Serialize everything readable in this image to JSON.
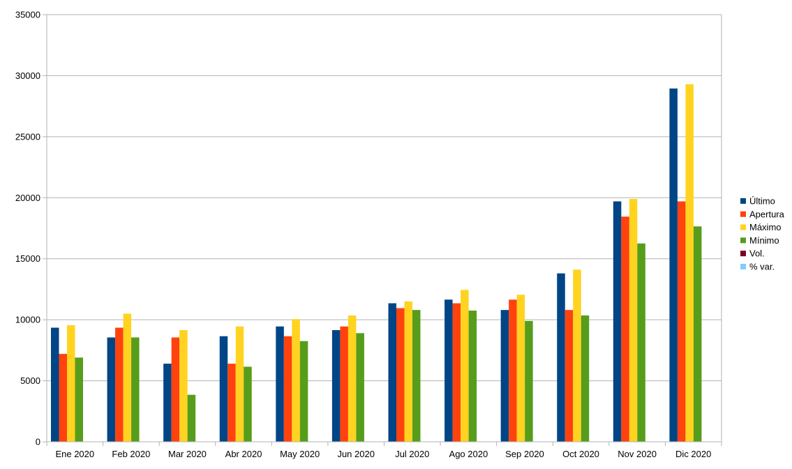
{
  "chart_data": {
    "type": "bar",
    "title": "",
    "xlabel": "",
    "ylabel": "",
    "ylim": [
      0,
      35000
    ],
    "y_ticks": [
      0,
      5000,
      10000,
      15000,
      20000,
      25000,
      30000,
      35000
    ],
    "y_tick_labels": [
      "0",
      "5000",
      "10000",
      "15000",
      "20000",
      "25000",
      "30000",
      "35000"
    ],
    "grid": "horizontal",
    "legend_position": "right",
    "categories": [
      "Ene 2020",
      "Feb 2020",
      "Mar 2020",
      "Abr 2020",
      "May 2020",
      "Jun 2020",
      "Jul 2020",
      "Ago 2020",
      "Sep 2020",
      "Oct 2020",
      "Nov 2020",
      "Dic 2020"
    ],
    "series": [
      {
        "name": "Último",
        "color": "#004586",
        "values": [
          9350,
          8550,
          6400,
          8650,
          9450,
          9150,
          11350,
          11650,
          10800,
          13800,
          19700,
          28950
        ]
      },
      {
        "name": "Apertura",
        "color": "#ff420e",
        "values": [
          7200,
          9350,
          8550,
          6400,
          8650,
          9450,
          10950,
          11350,
          11650,
          10800,
          18450,
          19700
        ]
      },
      {
        "name": "Máximo",
        "color": "#ffd320",
        "values": [
          9550,
          10500,
          9150,
          9450,
          10050,
          10350,
          11500,
          12450,
          12050,
          14100,
          19900,
          29300
        ]
      },
      {
        "name": "Mínimo",
        "color": "#579d1c",
        "values": [
          6900,
          8550,
          3850,
          6150,
          8250,
          8900,
          10800,
          10750,
          9900,
          10350,
          16250,
          17650
        ]
      },
      {
        "name": "Vol.",
        "color": "#7e0021",
        "values": [
          0,
          0,
          0,
          0,
          0,
          0,
          0,
          0,
          0,
          0,
          0,
          0
        ]
      },
      {
        "name": "% var.",
        "color": "#83caff",
        "values": [
          0,
          0,
          0,
          0,
          0,
          0,
          0,
          0,
          0,
          0,
          0,
          0
        ]
      }
    ]
  },
  "style": {
    "grid_color": "#b3b3b3",
    "axis_color": "#b3b3b3",
    "background": "#ffffff"
  }
}
